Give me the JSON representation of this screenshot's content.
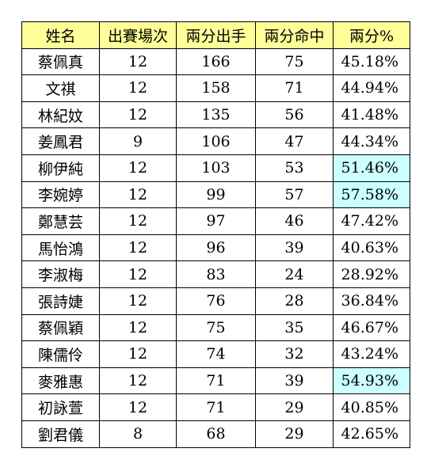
{
  "headers": [
    "姓名",
    "出賽場次",
    "兩分出手",
    "兩分命中",
    "兩分%"
  ],
  "highlight_color": "#ccffff",
  "header_color": "#ffff99",
  "rows": [
    {
      "name": "蔡佩真",
      "games": "12",
      "attempts": "166",
      "made": "75",
      "pct": "45.18%",
      "highlight": false
    },
    {
      "name": "文祺",
      "games": "12",
      "attempts": "158",
      "made": "71",
      "pct": "44.94%",
      "highlight": false
    },
    {
      "name": "林紀妏",
      "games": "12",
      "attempts": "135",
      "made": "56",
      "pct": "41.48%",
      "highlight": false
    },
    {
      "name": "姜鳳君",
      "games": "9",
      "attempts": "106",
      "made": "47",
      "pct": "44.34%",
      "highlight": false
    },
    {
      "name": "柳伊純",
      "games": "12",
      "attempts": "103",
      "made": "53",
      "pct": "51.46%",
      "highlight": true
    },
    {
      "name": "李婉婷",
      "games": "12",
      "attempts": "99",
      "made": "57",
      "pct": "57.58%",
      "highlight": true
    },
    {
      "name": "鄭慧芸",
      "games": "12",
      "attempts": "97",
      "made": "46",
      "pct": "47.42%",
      "highlight": false
    },
    {
      "name": "馬怡鴻",
      "games": "12",
      "attempts": "96",
      "made": "39",
      "pct": "40.63%",
      "highlight": false
    },
    {
      "name": "李淑梅",
      "games": "12",
      "attempts": "83",
      "made": "24",
      "pct": "28.92%",
      "highlight": false
    },
    {
      "name": "張詩婕",
      "games": "12",
      "attempts": "76",
      "made": "28",
      "pct": "36.84%",
      "highlight": false
    },
    {
      "name": "蔡佩穎",
      "games": "12",
      "attempts": "75",
      "made": "35",
      "pct": "46.67%",
      "highlight": false
    },
    {
      "name": "陳儒伶",
      "games": "12",
      "attempts": "74",
      "made": "32",
      "pct": "43.24%",
      "highlight": false
    },
    {
      "name": "麥雅惠",
      "games": "12",
      "attempts": "71",
      "made": "39",
      "pct": "54.93%",
      "highlight": true
    },
    {
      "name": "初詠萱",
      "games": "12",
      "attempts": "71",
      "made": "29",
      "pct": "40.85%",
      "highlight": false
    },
    {
      "name": "劉君儀",
      "games": "8",
      "attempts": "68",
      "made": "29",
      "pct": "42.65%",
      "highlight": false
    }
  ]
}
